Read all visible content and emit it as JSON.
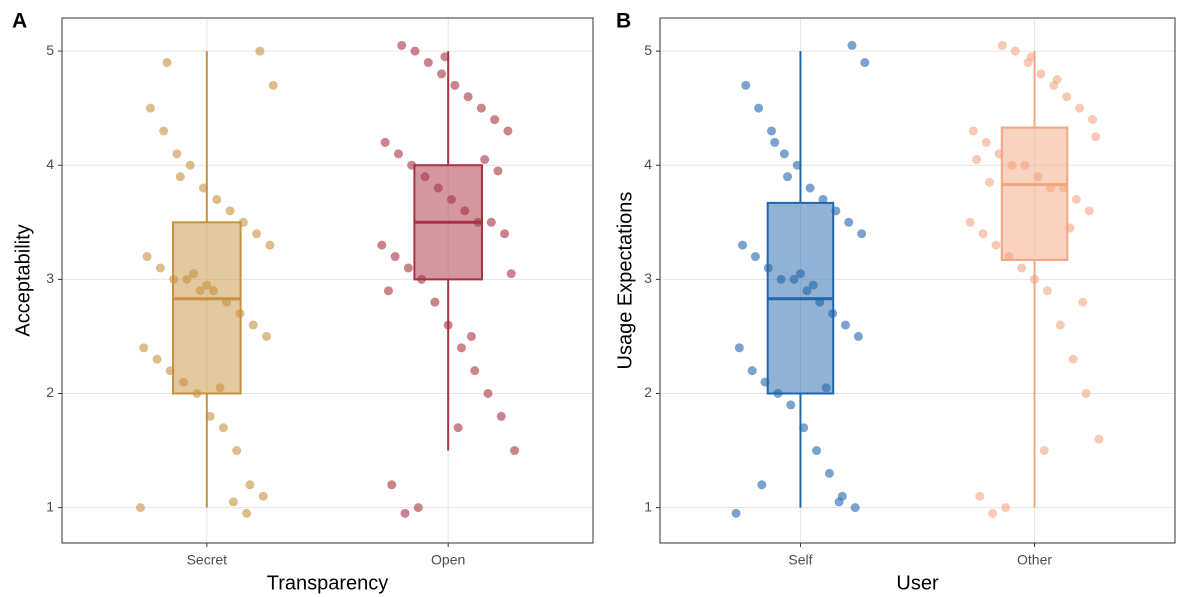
{
  "chart_data": [
    {
      "type": "box",
      "panel_label": "A",
      "xlabel": "Transparency",
      "ylabel": "Acceptability",
      "categories": [
        "Secret",
        "Open"
      ],
      "colors": [
        "#c8913f",
        "#a8323f"
      ],
      "boxes": [
        {
          "min": 1,
          "q1": 2.0,
          "median": 2.83,
          "q3": 3.5,
          "max": 5
        },
        {
          "min": 1.5,
          "q1": 3.0,
          "median": 3.5,
          "q3": 4.0,
          "max": 5
        }
      ],
      "points": [
        [
          1,
          1.1,
          1.2,
          1.5,
          1.7,
          1.8,
          2,
          2.1,
          2.2,
          2.3,
          2.4,
          2.5,
          2.6,
          2.7,
          2.8,
          2.9,
          2.9,
          3,
          3,
          3.1,
          3.2,
          3.3,
          3.4,
          3.5,
          3.6,
          3.7,
          3.8,
          4,
          4.1,
          4.3,
          4.5,
          4.7,
          5,
          0.95,
          1.05,
          2.05,
          2.95,
          3.05,
          3.9,
          4.9
        ],
        [
          1,
          0.95,
          1.2,
          1.5,
          1.8,
          2,
          2.2,
          2.4,
          2.6,
          2.8,
          3,
          3.1,
          3.2,
          3.3,
          3.4,
          3.5,
          3.5,
          3.6,
          3.7,
          3.8,
          3.9,
          4,
          4.1,
          4.2,
          4.3,
          4.4,
          4.5,
          4.6,
          4.7,
          4.8,
          4.9,
          5,
          5.05,
          2.9,
          3.05,
          3.95,
          4.05,
          2.5,
          1.7,
          4.95
        ]
      ],
      "ylim": [
        0.69,
        5.29
      ],
      "yticks": [
        1,
        2,
        3,
        4,
        5
      ],
      "grid": true
    },
    {
      "type": "box",
      "panel_label": "B",
      "xlabel": "User",
      "ylabel": "Usage Expectations",
      "categories": [
        "Self",
        "Other"
      ],
      "colors": [
        "#2166ac",
        "#f4a582"
      ],
      "boxes": [
        {
          "min": 1,
          "q1": 2.0,
          "median": 2.83,
          "q3": 3.67,
          "max": 5
        },
        {
          "min": 1,
          "q1": 3.17,
          "median": 3.83,
          "q3": 4.33,
          "max": 5
        }
      ],
      "points": [
        [
          0.95,
          1,
          1.1,
          1.3,
          1.5,
          1.7,
          1.9,
          2,
          2.1,
          2.2,
          2.4,
          2.5,
          2.6,
          2.7,
          2.8,
          2.9,
          3,
          3,
          3.1,
          3.2,
          3.3,
          3.4,
          3.5,
          3.6,
          3.7,
          3.8,
          4,
          4.1,
          4.3,
          4.5,
          4.7,
          4.9,
          5.05,
          1.05,
          2.05,
          2.95,
          3.05,
          3.9,
          4.2,
          1.2
        ],
        [
          1,
          0.95,
          1.1,
          1.6,
          2,
          2.3,
          2.6,
          2.9,
          3,
          3.1,
          3.2,
          3.3,
          3.4,
          3.5,
          3.6,
          3.7,
          3.8,
          3.8,
          3.9,
          4,
          4,
          4.1,
          4.2,
          4.3,
          4.4,
          4.5,
          4.6,
          4.7,
          4.8,
          4.9,
          5,
          5.05,
          3.85,
          4.05,
          4.25,
          2.8,
          3.45,
          4.75,
          1.5,
          4.95
        ]
      ],
      "ylim": [
        0.69,
        5.29
      ],
      "yticks": [
        1,
        2,
        3,
        4,
        5
      ],
      "grid": true
    }
  ]
}
